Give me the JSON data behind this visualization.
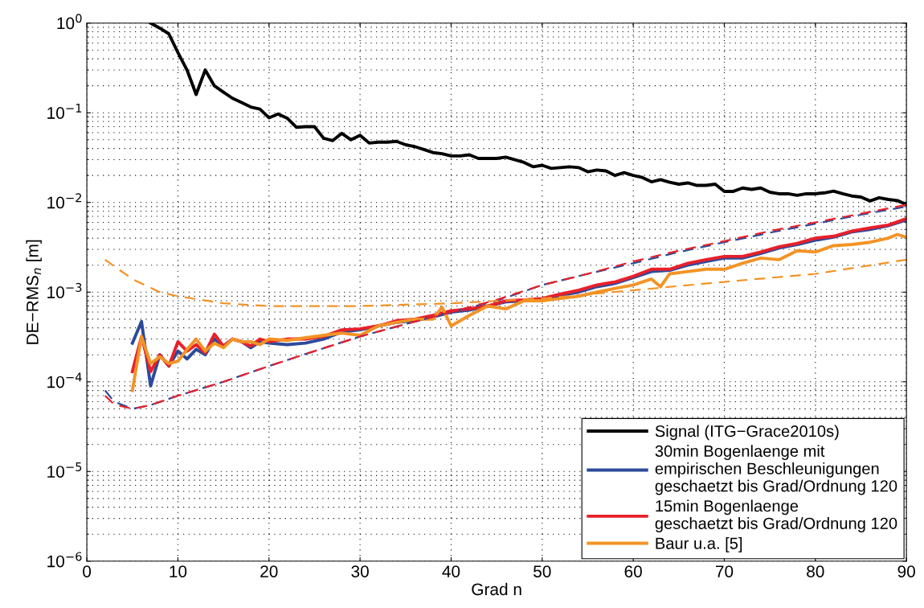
{
  "chart_data": {
    "type": "line",
    "xlabel": "Grad n",
    "ylabel": "DE−RMS$_{n}$ [m]",
    "log": "y",
    "xlim": [
      0,
      90
    ],
    "xticks": [
      0,
      10,
      20,
      30,
      40,
      50,
      60,
      70,
      80,
      90
    ],
    "ylim": [
      1e-06,
      1
    ],
    "yticks": [
      {
        "value": 1e-06,
        "label": "10$^{−6}$"
      },
      {
        "value": 1e-05,
        "label": "10$^{−5}$"
      },
      {
        "value": 0.0001,
        "label": "10$^{−4}$"
      },
      {
        "value": 0.001,
        "label": "10$^{−3}$"
      },
      {
        "value": 0.01,
        "label": "10$^{−2}$"
      },
      {
        "value": 0.1,
        "label": "10$^{−1}$"
      },
      {
        "value": 1,
        "label": "10$^{0}$"
      }
    ],
    "grid": true,
    "legend": "bottom right",
    "marker": "none",
    "series": [
      {
        "name": "Signal (ITG−Grace2010s)",
        "color": "#000000",
        "line_style": "solid",
        "x": [
          7,
          8,
          9,
          10,
          11,
          12,
          13,
          14,
          15,
          16,
          17,
          18,
          19,
          20,
          21,
          22,
          23,
          24,
          25,
          26,
          27,
          28,
          29,
          30,
          31,
          32,
          33,
          34,
          35,
          36,
          37,
          38,
          39,
          40,
          41,
          42,
          43,
          44,
          45,
          46,
          47,
          48,
          49,
          50,
          51,
          52,
          53,
          54,
          55,
          56,
          57,
          58,
          59,
          60,
          61,
          62,
          63,
          64,
          65,
          66,
          67,
          68,
          69,
          70,
          71,
          72,
          73,
          74,
          75,
          76,
          77,
          78,
          79,
          80,
          81,
          82,
          83,
          84,
          85,
          86,
          87,
          88,
          89,
          90
        ],
        "values": [
          1.0,
          0.88,
          0.76,
          0.47,
          0.3,
          0.16,
          0.3,
          0.2,
          0.17,
          0.145,
          0.13,
          0.116,
          0.11,
          0.088,
          0.097,
          0.087,
          0.069,
          0.07,
          0.07,
          0.052,
          0.049,
          0.059,
          0.05,
          0.056,
          0.046,
          0.047,
          0.047,
          0.048,
          0.044,
          0.042,
          0.039,
          0.036,
          0.035,
          0.033,
          0.033,
          0.034,
          0.031,
          0.031,
          0.031,
          0.032,
          0.03,
          0.028,
          0.025,
          0.026,
          0.024,
          0.0245,
          0.025,
          0.0245,
          0.022,
          0.023,
          0.0225,
          0.02,
          0.0215,
          0.02,
          0.019,
          0.017,
          0.018,
          0.0168,
          0.016,
          0.0165,
          0.0155,
          0.0155,
          0.016,
          0.0133,
          0.0133,
          0.0145,
          0.014,
          0.0145,
          0.013,
          0.0125,
          0.0125,
          0.012,
          0.0125,
          0.0125,
          0.0128,
          0.0134,
          0.0125,
          0.0118,
          0.0115,
          0.0104,
          0.0113,
          0.0108,
          0.0105,
          0.0095
        ]
      },
      {
        "name": "30min Bogenlaenge mit\nempirischen Beschleunigungen\ngeschaetzt bis Grad/Ordnung 120",
        "color": "#2b4a9b",
        "line_style": "solid",
        "x": [
          5,
          6,
          7,
          8,
          9,
          10,
          11,
          12,
          13,
          14,
          15,
          16,
          17,
          18,
          19,
          20,
          22,
          24,
          26,
          28,
          30,
          32,
          34,
          36,
          38,
          40,
          42,
          44,
          46,
          48,
          50,
          52,
          54,
          56,
          58,
          60,
          62,
          64,
          66,
          68,
          70,
          72,
          74,
          76,
          78,
          80,
          82,
          84,
          86,
          88,
          90
        ],
        "values": [
          0.00027,
          0.00047,
          9e-05,
          0.0002,
          0.00015,
          0.00022,
          0.00018,
          0.00023,
          0.0002,
          0.0003,
          0.00025,
          0.0003,
          0.00028,
          0.00024,
          0.00028,
          0.00027,
          0.00026,
          0.00027,
          0.0003,
          0.00036,
          0.00038,
          0.00042,
          0.00046,
          0.00048,
          0.00053,
          0.0006,
          0.00063,
          0.0007,
          0.00078,
          0.0008,
          0.00083,
          0.00092,
          0.001,
          0.00115,
          0.00125,
          0.00145,
          0.0017,
          0.00175,
          0.002,
          0.0022,
          0.0024,
          0.0024,
          0.0027,
          0.0031,
          0.0034,
          0.0038,
          0.0041,
          0.0047,
          0.005,
          0.0055,
          0.0064
        ]
      },
      {
        "name": "15min Bogenlaenge\ngeschaetzt bis Grad/Ordnung 120",
        "color": "#e8202a",
        "line_style": "solid",
        "x": [
          5,
          6,
          7,
          8,
          9,
          10,
          11,
          12,
          13,
          14,
          15,
          16,
          17,
          18,
          19,
          20,
          22,
          24,
          26,
          28,
          30,
          32,
          34,
          36,
          38,
          40,
          42,
          44,
          46,
          48,
          50,
          52,
          54,
          56,
          58,
          60,
          62,
          64,
          66,
          68,
          70,
          72,
          74,
          76,
          78,
          80,
          82,
          84,
          86,
          88,
          90
        ],
        "values": [
          0.00013,
          0.00032,
          0.00013,
          0.0002,
          0.00015,
          0.00028,
          0.00022,
          0.00026,
          0.00021,
          0.00034,
          0.00025,
          0.0003,
          0.00028,
          0.00025,
          0.0003,
          0.00028,
          0.0003,
          0.0003,
          0.00032,
          0.00038,
          0.00039,
          0.00042,
          0.00048,
          0.0005,
          0.00055,
          0.00062,
          0.00065,
          0.0007,
          0.0008,
          0.00082,
          0.00085,
          0.00095,
          0.00105,
          0.0012,
          0.0013,
          0.0015,
          0.0018,
          0.0018,
          0.0021,
          0.0023,
          0.0025,
          0.0025,
          0.0028,
          0.0032,
          0.0035,
          0.004,
          0.0042,
          0.0048,
          0.0052,
          0.0056,
          0.0066
        ]
      },
      {
        "name": "Baur u.a. [5]",
        "color": "#f39325",
        "line_style": "solid",
        "x": [
          5,
          6,
          7,
          8,
          9,
          10,
          11,
          12,
          13,
          14,
          15,
          16,
          17,
          18,
          19,
          20,
          22,
          24,
          26,
          28,
          30,
          32,
          34,
          36,
          38,
          39,
          40,
          42,
          44,
          46,
          48,
          50,
          52,
          54,
          56,
          58,
          60,
          62,
          63,
          64,
          66,
          68,
          70,
          72,
          74,
          76,
          78,
          80,
          82,
          84,
          86,
          88,
          89,
          90
        ],
        "values": [
          8e-05,
          0.00032,
          0.00016,
          0.00019,
          0.00016,
          0.00017,
          0.00023,
          0.0003,
          0.00022,
          0.00027,
          0.00024,
          0.0003,
          0.00028,
          0.00028,
          0.00026,
          0.0003,
          0.00029,
          0.00031,
          0.00033,
          0.00035,
          0.00033,
          0.00042,
          0.00046,
          0.0005,
          0.0005,
          0.00068,
          0.00042,
          0.00055,
          0.0007,
          0.00065,
          0.0008,
          0.0008,
          0.00085,
          0.0009,
          0.001,
          0.0011,
          0.0012,
          0.0014,
          0.00115,
          0.0016,
          0.0017,
          0.0018,
          0.0018,
          0.0021,
          0.0024,
          0.0023,
          0.0029,
          0.0028,
          0.0033,
          0.0034,
          0.0036,
          0.004,
          0.0044,
          0.0041
        ]
      },
      {
        "color": "#2b4a9b",
        "line_style": "dashed",
        "x": [
          2,
          3,
          5,
          7,
          10,
          15,
          20,
          25,
          30,
          35,
          40,
          45,
          50,
          55,
          60,
          65,
          70,
          75,
          80,
          85,
          90
        ],
        "values": [
          8e-05,
          6e-05,
          5e-05,
          5.5e-05,
          7e-05,
          0.0001,
          0.00015,
          0.00022,
          0.00032,
          0.00044,
          0.0006,
          0.0008,
          0.0012,
          0.0016,
          0.0021,
          0.0028,
          0.0036,
          0.0046,
          0.0058,
          0.0073,
          0.009
        ]
      },
      {
        "color": "#e8202a",
        "line_style": "dashed",
        "x": [
          2,
          3,
          5,
          7,
          10,
          15,
          20,
          25,
          30,
          35,
          40,
          45,
          50,
          55,
          60,
          65,
          70,
          75,
          80,
          85,
          90
        ],
        "values": [
          7e-05,
          5.6e-05,
          5e-05,
          5.5e-05,
          7e-05,
          0.0001,
          0.00015,
          0.00022,
          0.00032,
          0.00044,
          0.0006,
          0.00082,
          0.0012,
          0.0016,
          0.0022,
          0.0029,
          0.0037,
          0.0048,
          0.006,
          0.0075,
          0.0094
        ]
      },
      {
        "color": "#f39325",
        "line_style": "dashed",
        "x": [
          2,
          5,
          8,
          10,
          15,
          20,
          30,
          40,
          50,
          60,
          70,
          80,
          90
        ],
        "values": [
          0.0023,
          0.0014,
          0.001,
          0.0009,
          0.00075,
          0.0007,
          0.0007,
          0.00075,
          0.00085,
          0.00105,
          0.0013,
          0.0016,
          0.0023
        ]
      }
    ]
  }
}
